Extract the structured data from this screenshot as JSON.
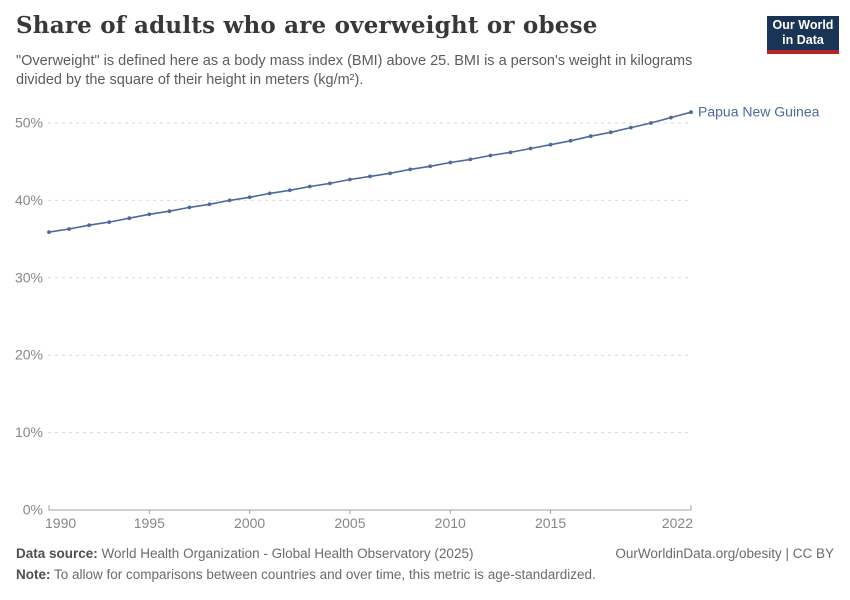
{
  "header": {
    "title": "Share of adults who are overweight or obese",
    "subtitle": "\"Overweight\" is defined here as a body mass index (BMI) above 25. BMI is a person's weight in kilograms divided by the square of their height in meters (kg/m²).",
    "logo": {
      "line1": "Our World",
      "line2": "in Data",
      "bg_color": "#1a3455",
      "accent_color": "#b5252c"
    }
  },
  "chart_data": {
    "type": "line",
    "title": "Share of adults who are overweight or obese",
    "entity": "Papua New Guinea",
    "unit": "%",
    "x": [
      1990,
      1991,
      1992,
      1993,
      1994,
      1995,
      1996,
      1997,
      1998,
      1999,
      2000,
      2001,
      2002,
      2003,
      2004,
      2005,
      2006,
      2007,
      2008,
      2009,
      2010,
      2011,
      2012,
      2013,
      2014,
      2015,
      2016,
      2017,
      2018,
      2019,
      2020,
      2021,
      2022
    ],
    "values": [
      35.9,
      36.3,
      36.8,
      37.2,
      37.7,
      38.2,
      38.6,
      39.1,
      39.5,
      40.0,
      40.4,
      40.9,
      41.3,
      41.8,
      42.2,
      42.7,
      43.1,
      43.5,
      44.0,
      44.4,
      44.9,
      45.3,
      45.8,
      46.2,
      46.7,
      47.2,
      47.7,
      48.3,
      48.8,
      49.4,
      50.0,
      50.7,
      51.4
    ],
    "ylim": [
      0,
      50
    ],
    "yticks": [
      0,
      10,
      20,
      30,
      40,
      50
    ],
    "ytick_labels": [
      "0%",
      "10%",
      "20%",
      "30%",
      "40%",
      "50%"
    ],
    "xticks": [
      1990,
      1995,
      2000,
      2005,
      2010,
      2015,
      2022
    ],
    "grid": "horizontal-dashed",
    "legend_position": "end-of-line-label",
    "line_color": "#4C6A9C",
    "label_color": "#4C6A9C",
    "grid_color": "#dadada",
    "axis_color": "#a3a3a3",
    "tick_text_color": "#878787"
  },
  "footer": {
    "datasource_label": "Data source:",
    "datasource_text": " World Health Organization - Global Health Observatory (2025)",
    "rights": "OurWorldinData.org/obesity | CC BY",
    "note_label": "Note:",
    "note_text": " To allow for comparisons between countries and over time, this metric is age-standardized."
  }
}
